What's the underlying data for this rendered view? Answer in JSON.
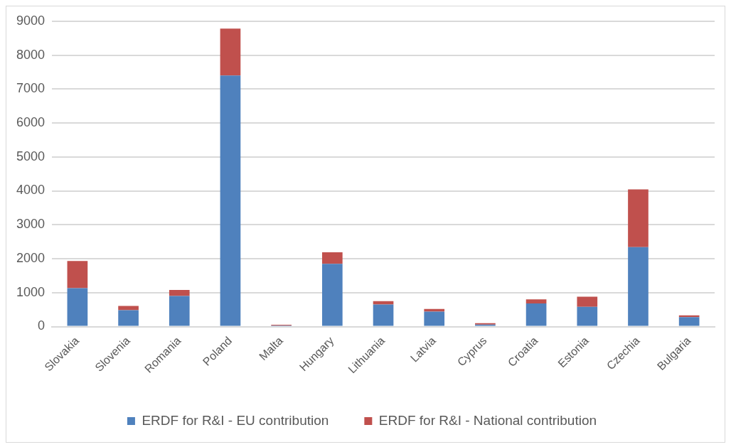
{
  "chart_data": {
    "type": "bar",
    "stacked": true,
    "categories": [
      "Slovakia",
      "Slovenia",
      "Romania",
      "Poland",
      "Malta",
      "Hungary",
      "Lithuania",
      "Latvia",
      "Cyprus",
      "Croatia",
      "Estonia",
      "Czechia",
      "Bulgaria"
    ],
    "series": [
      {
        "name": "ERDF for R&I - EU contribution",
        "color": "#4f81bd",
        "values": [
          1130,
          480,
          900,
          7400,
          30,
          1850,
          650,
          440,
          60,
          680,
          580,
          2340,
          280
        ]
      },
      {
        "name": "ERDF for R&I - National contribution",
        "color": "#c0504d",
        "values": [
          800,
          130,
          180,
          1380,
          20,
          340,
          100,
          80,
          40,
          120,
          300,
          1700,
          50
        ]
      }
    ],
    "ylim": [
      0,
      9000
    ],
    "yticks": [
      0,
      1000,
      2000,
      3000,
      4000,
      5000,
      6000,
      7000,
      8000,
      9000
    ],
    "grid": "y",
    "legend": "bottom"
  }
}
